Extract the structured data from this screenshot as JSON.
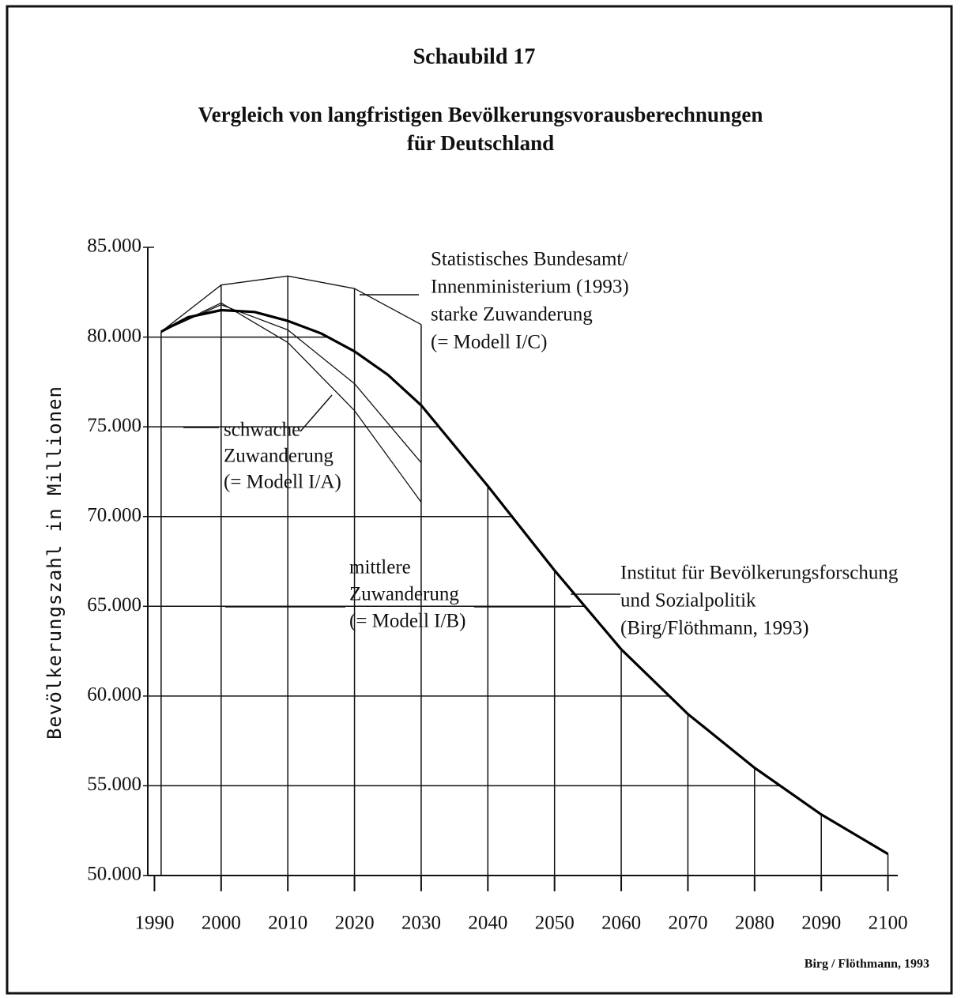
{
  "chart_data": {
    "type": "line",
    "title": "Schaubild 17",
    "subtitle": [
      "Vergleich von langfristigen Bevölkerungsvorausberechnungen",
      "für Deutschland"
    ],
    "y_label": "Bevölkerungszahl in Millionen",
    "source": "Birg / Flöthmann, 1993",
    "xlim": [
      1989,
      2101
    ],
    "xticks": [
      1990,
      2000,
      2010,
      2020,
      2030,
      2040,
      2050,
      2060,
      2070,
      2080,
      2090,
      2100
    ],
    "ylim": [
      50,
      85
    ],
    "yticks": [
      {
        "value": 50,
        "label": "50.000"
      },
      {
        "value": 55,
        "label": "55.000"
      },
      {
        "value": 60,
        "label": "60.000"
      },
      {
        "value": 65,
        "label": "65.000"
      },
      {
        "value": 70,
        "label": "70.000"
      },
      {
        "value": 75,
        "label": "75.000"
      },
      {
        "value": 80,
        "label": "80.000"
      },
      {
        "value": 85,
        "label": "85.000"
      }
    ],
    "grid": true,
    "series": [
      {
        "name": [
          "Statistisches Bundesamt/",
          "Innenministerium (1993)",
          "starke Zuwanderung",
          "(= Modell I/C)"
        ],
        "color": "#111111",
        "width": 1.3,
        "x": [
          1991,
          2000,
          2010,
          2020,
          2030
        ],
        "values": [
          80.3,
          82.9,
          83.4,
          82.7,
          80.7
        ]
      },
      {
        "name": [
          "schwache",
          "Zuwanderung",
          "(= Modell I/A)"
        ],
        "color": "#111111",
        "width": 1.3,
        "x": [
          1991,
          2000,
          2010,
          2020,
          2030
        ],
        "values": [
          80.3,
          81.9,
          79.7,
          75.9,
          70.8
        ]
      },
      {
        "name": [
          "mittlere",
          "Zuwanderung",
          "(= Modell I/B)"
        ],
        "color": "#111111",
        "width": 1.3,
        "x": [
          1991,
          2000,
          2010,
          2020,
          2030
        ],
        "values": [
          80.3,
          81.8,
          80.4,
          77.4,
          73.0
        ]
      },
      {
        "name": [
          "Institut für Bevölkerungsforschung",
          "und Sozialpolitik",
          "(Birg/Flöthmann, 1993)"
        ],
        "color": "#000000",
        "width": 3.2,
        "x": [
          1991,
          1995,
          2000,
          2005,
          2010,
          2015,
          2020,
          2025,
          2030,
          2040,
          2050,
          2060,
          2070,
          2080,
          2090,
          2100
        ],
        "values": [
          80.3,
          81.1,
          81.5,
          81.4,
          80.9,
          80.2,
          79.2,
          77.9,
          76.2,
          71.7,
          67.0,
          62.6,
          59.0,
          56.0,
          53.4,
          51.2
        ]
      }
    ]
  }
}
